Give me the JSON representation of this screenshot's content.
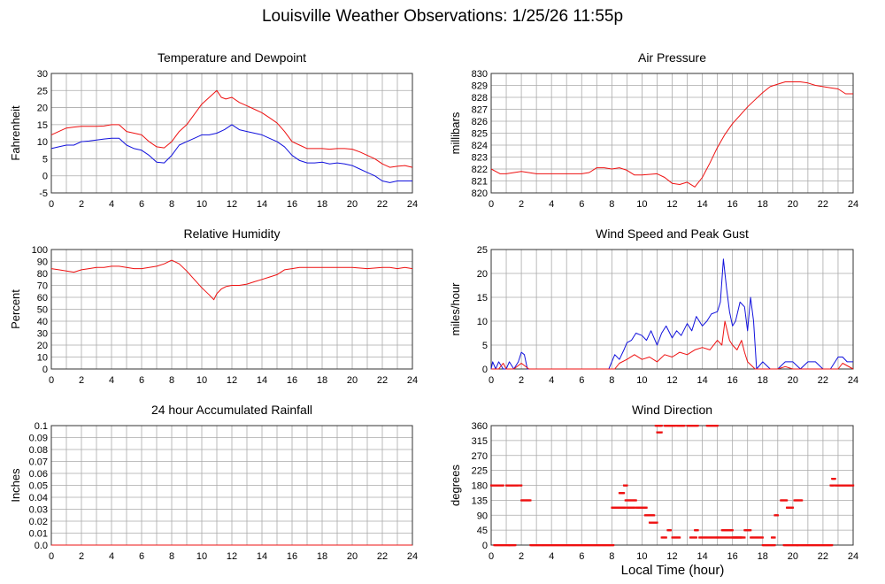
{
  "page": {
    "title": "Louisville Weather Observations: 1/25/26 11:55p",
    "x_axis_title": "Local Time (hour)"
  },
  "colors": {
    "red": "#ee1111",
    "blue": "#1111dd",
    "grid": "#aaaaaa",
    "frame": "#333333"
  },
  "chart_data": [
    {
      "id": "temp",
      "type": "line",
      "title": "Temperature and Dewpoint",
      "xlabel": "",
      "ylabel": "Fahrenheit",
      "xlim": [
        0,
        24
      ],
      "ylim": [
        -5,
        30
      ],
      "xticks": [
        "0",
        "2",
        "4",
        "6",
        "8",
        "10",
        "12",
        "14",
        "16",
        "18",
        "20",
        "22",
        "24"
      ],
      "yticks": [
        "-5",
        "0",
        "5",
        "10",
        "15",
        "20",
        "25",
        "30"
      ],
      "series": [
        {
          "color": "red",
          "style": "line",
          "x": [
            0,
            0.5,
            1,
            1.5,
            2,
            2.5,
            3,
            3.5,
            4,
            4.5,
            5,
            5.5,
            6,
            6.5,
            7,
            7.5,
            8,
            8.5,
            9,
            9.5,
            10,
            10.5,
            11,
            11.3,
            11.6,
            12,
            12.5,
            13,
            13.5,
            14,
            14.5,
            15,
            15.5,
            16,
            16.5,
            17,
            17.5,
            18,
            18.5,
            19,
            19.5,
            20,
            20.5,
            21,
            21.5,
            22,
            22.5,
            23,
            23.5,
            24
          ],
          "y": [
            12,
            13,
            14,
            14.3,
            14.5,
            14.5,
            14.5,
            14.6,
            15,
            15,
            13,
            12.5,
            12,
            10,
            8.5,
            8.2,
            10,
            13,
            15,
            18,
            21,
            23,
            25,
            23,
            22.5,
            23,
            21.5,
            20.5,
            19.5,
            18.5,
            17,
            15.5,
            13,
            10,
            9,
            8,
            8,
            8,
            7.8,
            8,
            8,
            7.8,
            7,
            6,
            5,
            3.5,
            2.5,
            2.8,
            3,
            2.5
          ]
        },
        {
          "color": "blue",
          "style": "line",
          "x": [
            0,
            0.5,
            1,
            1.5,
            2,
            2.5,
            3,
            3.5,
            4,
            4.5,
            5,
            5.5,
            6,
            6.5,
            7,
            7.5,
            8,
            8.5,
            9,
            9.5,
            10,
            10.5,
            11,
            11.5,
            12,
            12.5,
            13,
            13.5,
            14,
            14.5,
            15,
            15.5,
            16,
            16.5,
            17,
            17.5,
            18,
            18.5,
            19,
            19.5,
            20,
            20.5,
            21,
            21.5,
            22,
            22.5,
            23,
            23.5,
            24
          ],
          "y": [
            8,
            8.5,
            9,
            9,
            10,
            10.2,
            10.5,
            10.8,
            11,
            11,
            9,
            8,
            7.5,
            6,
            4,
            3.8,
            6,
            9,
            10,
            11,
            12,
            12,
            12.5,
            13.5,
            15,
            13.5,
            13,
            12.5,
            12,
            11,
            10,
            8.5,
            6,
            4.5,
            3.8,
            3.8,
            4,
            3.5,
            3.8,
            3.5,
            3,
            2,
            1,
            0,
            -1.5,
            -2,
            -1.5,
            -1.5,
            -1.5
          ]
        }
      ]
    },
    {
      "id": "pressure",
      "type": "line",
      "title": "Air Pressure",
      "xlabel": "",
      "ylabel": "millibars",
      "xlim": [
        0,
        24
      ],
      "ylim": [
        820,
        830
      ],
      "xticks": [
        "0",
        "2",
        "4",
        "6",
        "8",
        "10",
        "12",
        "14",
        "16",
        "18",
        "20",
        "22",
        "24"
      ],
      "yticks": [
        "820",
        "821",
        "822",
        "823",
        "824",
        "825",
        "826",
        "827",
        "828",
        "829",
        "830"
      ],
      "series": [
        {
          "color": "red",
          "style": "line",
          "x": [
            0,
            0.3,
            0.6,
            1,
            2,
            3,
            4,
            5,
            6,
            6.5,
            7,
            7.5,
            8,
            8.5,
            9,
            9.5,
            10,
            11,
            11.5,
            12,
            12.5,
            13,
            13.5,
            14,
            14.5,
            15,
            15.5,
            16,
            16.5,
            17,
            17.5,
            18,
            18.5,
            19,
            19.5,
            20,
            20.5,
            21,
            21.5,
            22,
            22.5,
            23,
            23.5,
            24
          ],
          "y": [
            822,
            821.8,
            821.6,
            821.6,
            821.8,
            821.6,
            821.6,
            821.6,
            821.6,
            821.7,
            822.1,
            822.1,
            822.0,
            822.1,
            821.9,
            821.5,
            821.5,
            821.6,
            821.3,
            820.8,
            820.7,
            820.9,
            820.5,
            821.3,
            822.5,
            823.8,
            824.9,
            825.8,
            826.5,
            827.2,
            827.8,
            828.4,
            828.9,
            829.1,
            829.3,
            829.3,
            829.3,
            829.2,
            829.0,
            828.9,
            828.8,
            828.7,
            828.3,
            828.3
          ]
        }
      ]
    },
    {
      "id": "humidity",
      "type": "line",
      "title": "Relative Humidity",
      "xlabel": "",
      "ylabel": "Percent",
      "xlim": [
        0,
        24
      ],
      "ylim": [
        0,
        100
      ],
      "xticks": [
        "0",
        "2",
        "4",
        "6",
        "8",
        "10",
        "12",
        "14",
        "16",
        "18",
        "20",
        "22",
        "24"
      ],
      "yticks": [
        "0",
        "10",
        "20",
        "30",
        "40",
        "50",
        "60",
        "70",
        "80",
        "90",
        "100"
      ],
      "series": [
        {
          "color": "red",
          "style": "line",
          "x": [
            0,
            0.5,
            1,
            1.5,
            2,
            2.5,
            3,
            3.5,
            4,
            4.5,
            5,
            5.5,
            6,
            6.5,
            7,
            7.5,
            8,
            8.5,
            9,
            9.5,
            10,
            10.5,
            10.8,
            11,
            11.3,
            11.6,
            12,
            12.5,
            13,
            13.5,
            14,
            14.5,
            15,
            15.5,
            16,
            16.5,
            17,
            18,
            19,
            20,
            21,
            22,
            22.5,
            23,
            23.5,
            24
          ],
          "y": [
            84,
            83,
            82,
            81,
            83,
            84,
            85,
            85,
            86,
            86,
            85,
            84,
            84,
            85,
            86,
            88,
            91,
            88,
            82,
            75,
            68,
            62,
            58,
            63,
            67,
            69,
            70,
            70,
            71,
            73,
            75,
            77,
            79,
            83,
            84,
            85,
            85,
            85,
            85,
            85,
            84,
            85,
            85,
            84,
            85,
            84
          ]
        }
      ]
    },
    {
      "id": "wind",
      "type": "line",
      "title": "Wind Speed and Peak Gust",
      "xlabel": "",
      "ylabel": "miles/hour",
      "xlim": [
        0,
        24
      ],
      "ylim": [
        0,
        25
      ],
      "xticks": [
        "0",
        "2",
        "4",
        "6",
        "8",
        "10",
        "12",
        "14",
        "16",
        "18",
        "20",
        "22",
        "24"
      ],
      "yticks": [
        "0",
        "5",
        "10",
        "15",
        "20",
        "25"
      ],
      "series": [
        {
          "color": "blue",
          "style": "line",
          "x": [
            0,
            0.1,
            0.3,
            0.5,
            0.8,
            1.0,
            1.2,
            1.5,
            1.8,
            2.0,
            2.2,
            2.4,
            2.6,
            3,
            4,
            5,
            6,
            7,
            7.8,
            8.0,
            8.2,
            8.5,
            8.8,
            9.0,
            9.3,
            9.6,
            10,
            10.3,
            10.6,
            11,
            11.3,
            11.6,
            12,
            12.3,
            12.6,
            13,
            13.3,
            13.6,
            14,
            14.3,
            14.6,
            15,
            15.2,
            15.4,
            15.6,
            15.8,
            16,
            16.2,
            16.5,
            16.8,
            17,
            17.2,
            17.4,
            17.6,
            18,
            18.5,
            19,
            19.5,
            20,
            20.5,
            21,
            21.5,
            22,
            22.5,
            23,
            23.3,
            23.6,
            24
          ],
          "y": [
            0,
            1.5,
            0,
            1.5,
            0,
            0,
            1.5,
            0,
            1.5,
            3.5,
            3,
            0,
            0,
            0,
            0,
            0,
            0,
            0,
            0,
            1.5,
            3,
            2,
            4,
            5.5,
            6,
            7.5,
            7,
            6,
            8,
            5,
            7.5,
            9,
            6.5,
            8,
            7,
            9.5,
            8,
            11,
            9,
            10,
            11.5,
            12,
            14,
            23,
            17,
            12,
            9,
            10,
            14,
            13,
            8,
            15,
            10,
            0,
            1.5,
            0,
            0,
            1.5,
            1.5,
            0,
            1.5,
            1.5,
            0,
            0,
            2.5,
            2.5,
            1.5,
            1.5
          ]
        },
        {
          "color": "red",
          "style": "line",
          "x": [
            0,
            0.5,
            0.8,
            1,
            1.5,
            2,
            2.5,
            3,
            7.8,
            8.2,
            8.5,
            9,
            9.5,
            10,
            10.5,
            11,
            11.5,
            12,
            12.5,
            13,
            13.5,
            14,
            14.5,
            15,
            15.3,
            15.5,
            15.8,
            16,
            16.3,
            16.6,
            16.8,
            17,
            17.5,
            18,
            19,
            19.5,
            20,
            21,
            22,
            23,
            23.3,
            24
          ],
          "y": [
            0,
            0,
            1.2,
            0,
            0,
            1.2,
            0,
            0,
            0,
            0,
            1.2,
            2,
            3,
            2,
            2.5,
            1.5,
            3,
            2.5,
            3.5,
            3,
            4,
            4.5,
            4,
            6,
            5,
            10,
            6,
            5,
            4,
            6,
            3.5,
            1.5,
            0,
            0,
            0,
            0.5,
            0,
            0,
            0,
            0,
            1.2,
            0
          ]
        }
      ]
    },
    {
      "id": "rain",
      "type": "line",
      "title": "24 hour Accumulated Rainfall",
      "xlabel": "",
      "ylabel": "Inches",
      "xlim": [
        0,
        24
      ],
      "ylim": [
        0,
        0.1
      ],
      "xticks": [
        "0",
        "2",
        "4",
        "6",
        "8",
        "10",
        "12",
        "14",
        "16",
        "18",
        "20",
        "22",
        "24"
      ],
      "yticks": [
        "0.0",
        "0.01",
        "0.02",
        "0.03",
        "0.04",
        "0.05",
        "0.06",
        "0.07",
        "0.08",
        "0.09",
        "0.1"
      ],
      "series": [
        {
          "color": "red",
          "style": "line",
          "x": [
            0,
            24
          ],
          "y": [
            0,
            0
          ]
        }
      ]
    },
    {
      "id": "direction",
      "type": "scatter",
      "title": "Wind Direction",
      "xlabel": "Local Time (hour)",
      "ylabel": "degrees",
      "xlim": [
        0,
        24
      ],
      "ylim": [
        0,
        360
      ],
      "xticks": [
        "0",
        "2",
        "4",
        "6",
        "8",
        "10",
        "12",
        "14",
        "16",
        "18",
        "20",
        "22",
        "24"
      ],
      "yticks": [
        "0",
        "45",
        "90",
        "135",
        "180",
        "225",
        "270",
        "315",
        "360"
      ],
      "series": [
        {
          "color": "red",
          "style": "dots",
          "segments": [
            [
              0.0,
              0.8,
              180
            ],
            [
              0.2,
              1.2,
              0
            ],
            [
              1.0,
              1.8,
              180
            ],
            [
              1.2,
              1.6,
              0
            ],
            [
              1.9,
              2.0,
              180
            ],
            [
              2.0,
              2.6,
              135
            ],
            [
              2.6,
              8.1,
              0
            ],
            [
              8.0,
              8.9,
              113
            ],
            [
              8.5,
              8.8,
              157
            ],
            [
              8.8,
              9.0,
              180
            ],
            [
              8.9,
              9.6,
              135
            ],
            [
              9.0,
              9.5,
              113
            ],
            [
              9.6,
              10.3,
              113
            ],
            [
              10.2,
              10.8,
              90
            ],
            [
              10.5,
              11.0,
              68
            ],
            [
              10.9,
              11.3,
              360
            ],
            [
              11.0,
              11.3,
              340
            ],
            [
              11.3,
              11.6,
              23
            ],
            [
              11.5,
              12.2,
              360
            ],
            [
              11.7,
              11.9,
              45
            ],
            [
              12.0,
              12.5,
              23
            ],
            [
              12.3,
              12.8,
              360
            ],
            [
              13.0,
              13.7,
              360
            ],
            [
              13.2,
              13.6,
              23
            ],
            [
              13.5,
              13.7,
              45
            ],
            [
              13.8,
              15.0,
              23
            ],
            [
              14.3,
              15.0,
              360
            ],
            [
              15.0,
              16.8,
              23
            ],
            [
              15.3,
              16.0,
              45
            ],
            [
              16.0,
              16.6,
              23
            ],
            [
              16.8,
              17.2,
              45
            ],
            [
              17.2,
              18.0,
              23
            ],
            [
              18.0,
              18.8,
              0
            ],
            [
              18.6,
              18.8,
              23
            ],
            [
              18.8,
              19.0,
              90
            ],
            [
              19.2,
              19.6,
              135
            ],
            [
              19.6,
              20.0,
              113
            ],
            [
              19.4,
              20.3,
              0
            ],
            [
              20.1,
              20.6,
              135
            ],
            [
              20.3,
              22.6,
              0
            ],
            [
              22.5,
              22.7,
              180
            ],
            [
              22.6,
              22.8,
              200
            ],
            [
              22.8,
              24.0,
              180
            ]
          ]
        }
      ]
    }
  ]
}
